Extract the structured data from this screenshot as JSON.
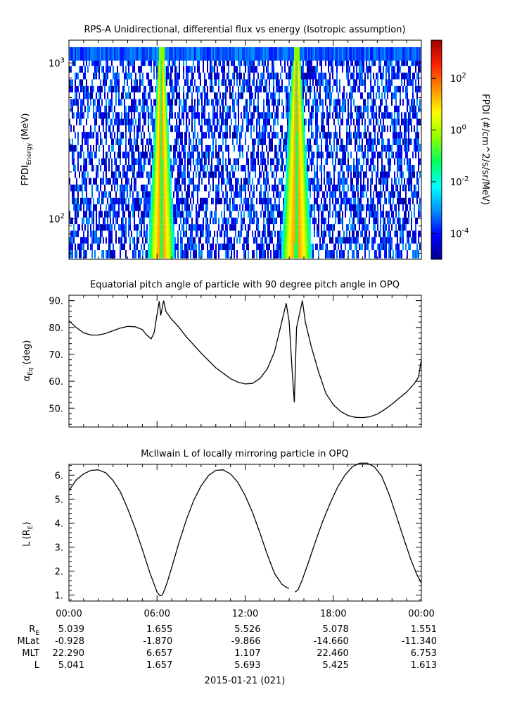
{
  "figure": {
    "date_label": "2015-01-21 (021)"
  },
  "chart_data": [
    {
      "type": "heatmap",
      "title": "RPS-A Unidirectional, differential flux vs energy (Isotropic assumption)",
      "ylabel": "FPDI",
      "ylabel_sub": "Energy",
      "ylabel_unit": "(MeV)",
      "yscale": "log",
      "ylim": [
        55,
        1400
      ],
      "y_ticks": [
        {
          "value": 100,
          "base": "10",
          "exp": "2"
        },
        {
          "value": 1000,
          "base": "10",
          "exp": "3"
        }
      ],
      "xlim_hours": [
        0,
        24
      ],
      "colorbar": {
        "label": "FPDI (#/cm^2/s/sr/MeV)",
        "scale": "log",
        "range": [
          1e-05,
          3000
        ],
        "ticks": [
          {
            "value": 100,
            "base": "10",
            "exp": "2"
          },
          {
            "value": 1,
            "base": "10",
            "exp": "0"
          },
          {
            "value": 0.01,
            "base": "10",
            "exp": "-2"
          },
          {
            "value": 0.0001,
            "base": "10",
            "exp": "-4"
          }
        ],
        "colors": [
          "#00008f",
          "#0000ff",
          "#0090ff",
          "#00ffff",
          "#00ff60",
          "#90ff00",
          "#ffff00",
          "#ff9000",
          "#ff2000",
          "#a00000"
        ]
      },
      "energy_levels_mev": [
        60,
        66,
        73,
        80,
        88,
        97,
        107,
        118,
        130,
        143,
        158,
        174,
        192,
        211,
        233,
        257,
        283,
        312,
        344,
        379,
        418,
        460,
        507,
        559,
        616,
        679,
        748,
        825,
        909,
        1002,
        1104,
        1220,
        1310
      ],
      "bright_bands_hours": [
        {
          "center": 6.3,
          "halfwidth_bottom": 0.95,
          "halfwidth_top": 0.18,
          "peak_log10_flux": 1.5
        },
        {
          "center": 15.5,
          "halfwidth_bottom": 1.1,
          "halfwidth_top": 0.2,
          "peak_log10_flux": 1.5
        }
      ],
      "background_log10_flux": [
        -5,
        -3.5
      ]
    },
    {
      "type": "line",
      "title": "Equatorial pitch angle of particle with 90 degree pitch angle in OPQ",
      "ylabel": "α",
      "ylabel_sub": "Eq",
      "ylabel_unit": "(deg)",
      "xlim_hours": [
        0,
        24
      ],
      "ylim": [
        43,
        92
      ],
      "y_ticks": [
        "50.",
        "60.",
        "70.",
        "80.",
        "90."
      ],
      "x": [
        0,
        0.5,
        1,
        1.5,
        2,
        2.5,
        3,
        3.5,
        4,
        4.5,
        5,
        5.3,
        5.6,
        5.8,
        6.0,
        6.15,
        6.25,
        6.45,
        6.6,
        6.8,
        7.0,
        7.5,
        8,
        9,
        10,
        11,
        11.5,
        12,
        12.5,
        13,
        13.5,
        14,
        14.4,
        14.8,
        15.0,
        15.2,
        15.35,
        15.5,
        15.7,
        15.9,
        16.1,
        16.5,
        17,
        17.5,
        18,
        18.5,
        19,
        19.5,
        20,
        20.5,
        21,
        21.5,
        22,
        22.5,
        23,
        23.5,
        23.8,
        24.0
      ],
      "y": [
        82.5,
        80,
        78,
        77.2,
        77.2,
        77.8,
        78.8,
        79.8,
        80.4,
        80.3,
        79.2,
        77.2,
        75.8,
        78,
        85,
        89.8,
        84.5,
        90,
        86,
        84.5,
        83,
        80,
        76.5,
        70.5,
        65,
        61,
        59.7,
        59,
        59.2,
        61,
        64.5,
        71,
        80,
        89,
        82,
        64,
        52.2,
        80,
        85,
        90,
        82,
        73,
        63.5,
        55.5,
        51.3,
        48.8,
        47.3,
        46.6,
        46.5,
        46.8,
        47.8,
        49.5,
        51.5,
        53.8,
        56,
        59,
        61.5,
        68
      ]
    },
    {
      "type": "line",
      "title": "McIlwain L of locally mirroring particle in OPQ",
      "ylabel": "L",
      "ylabel_unit_main": "R",
      "ylabel_unit_sub": "E",
      "xlim_hours": [
        0,
        24
      ],
      "ylim": [
        0.75,
        6.45
      ],
      "y_ticks": [
        "1.",
        "2.",
        "3.",
        "4.",
        "5.",
        "6."
      ],
      "segments": [
        {
          "x": [
            0,
            0.5,
            1,
            1.5,
            2,
            2.5,
            3,
            3.5,
            4,
            4.5,
            5,
            5.5,
            5.8,
            6.0,
            6.2,
            6.35,
            6.5,
            6.7,
            7.0,
            7.5,
            8,
            8.5,
            9,
            9.5,
            10,
            10.5,
            11,
            11.5,
            12,
            12.5,
            13,
            13.5,
            14,
            14.5,
            14.8,
            15.0
          ],
          "y": [
            5.35,
            5.8,
            6.05,
            6.2,
            6.22,
            6.1,
            5.78,
            5.3,
            4.6,
            3.8,
            2.9,
            1.95,
            1.45,
            1.12,
            0.97,
            1.0,
            1.2,
            1.55,
            2.15,
            3.2,
            4.15,
            4.95,
            5.55,
            5.98,
            6.2,
            6.22,
            6.05,
            5.7,
            5.15,
            4.45,
            3.6,
            2.7,
            1.9,
            1.45,
            1.33,
            1.28
          ]
        },
        {
          "x": [
            15.4,
            15.6,
            15.9,
            16.3,
            16.8,
            17.3,
            17.8,
            18.3,
            18.8,
            19.3,
            19.8,
            20.3,
            20.8,
            21.3,
            21.8,
            22.3,
            22.8,
            23.3,
            23.7,
            24.0
          ],
          "y": [
            1.12,
            1.22,
            1.65,
            2.35,
            3.25,
            4.1,
            4.85,
            5.5,
            6.0,
            6.35,
            6.5,
            6.5,
            6.35,
            5.95,
            5.2,
            4.3,
            3.35,
            2.45,
            1.85,
            1.5
          ]
        }
      ]
    }
  ],
  "time_axis": {
    "tick_labels": [
      "00:00",
      "06:00",
      "12:00",
      "18:00",
      "00:00"
    ],
    "ephemeris": {
      "rows": [
        {
          "label_main": "R",
          "label_sub": "E",
          "values": [
            "5.039",
            "1.655",
            "5.526",
            "5.078",
            "1.551"
          ]
        },
        {
          "label_main": "MLat",
          "label_sub": "",
          "values": [
            "-0.928",
            "-1.870",
            "-9.866",
            "-14.660",
            "-11.340"
          ]
        },
        {
          "label_main": "MLT",
          "label_sub": "",
          "values": [
            "22.290",
            "6.657",
            "1.107",
            "22.460",
            "6.753"
          ]
        },
        {
          "label_main": "L",
          "label_sub": "",
          "values": [
            "5.041",
            "1.657",
            "5.693",
            "5.425",
            "1.613"
          ]
        }
      ]
    }
  }
}
